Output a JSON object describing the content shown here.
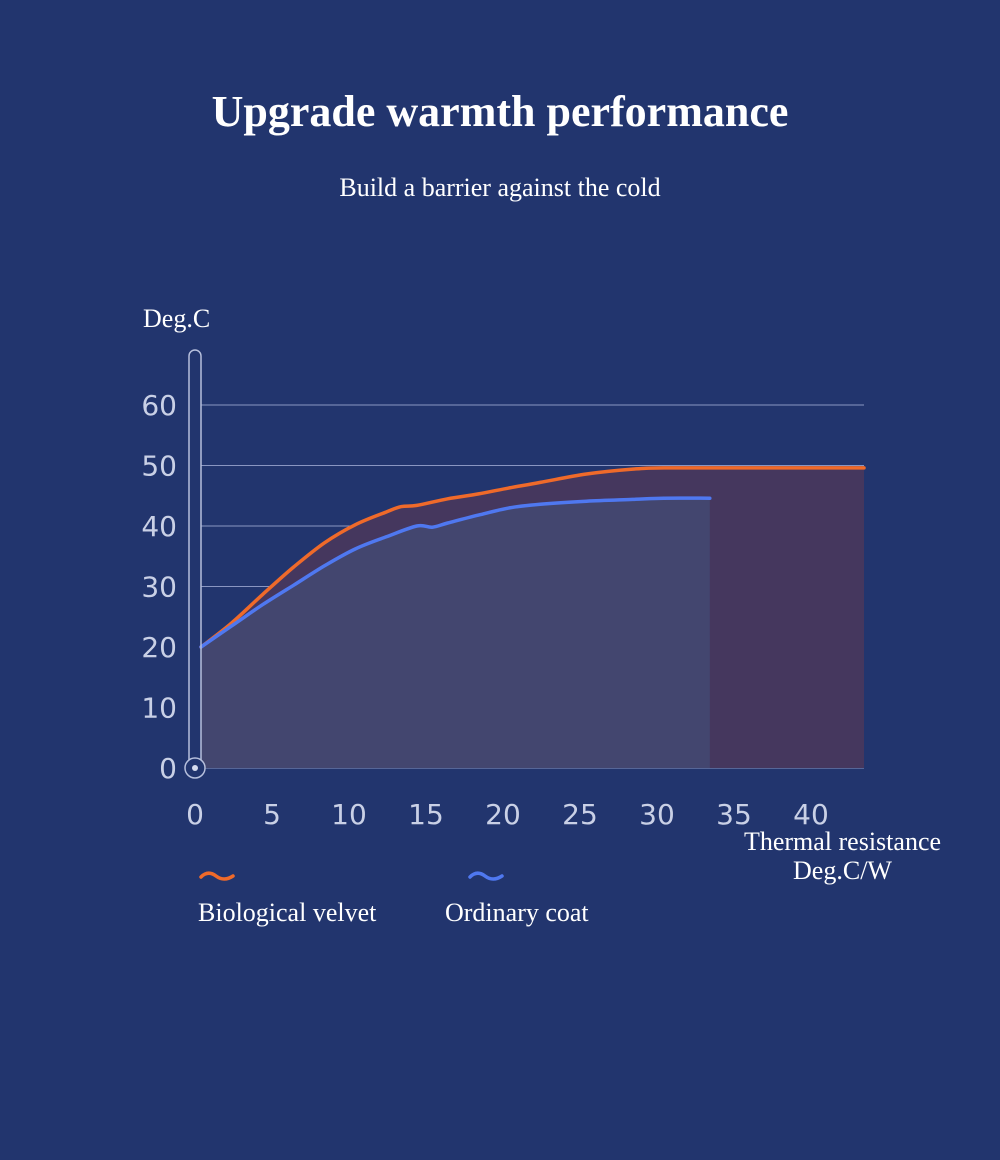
{
  "header": {
    "title": "Upgrade warmth performance",
    "subtitle": "Build a barrier against the cold"
  },
  "chart_data": {
    "type": "area",
    "ylabel": "Deg.C",
    "xlabel_lines": [
      "Thermal resistance",
      "Deg.C/W"
    ],
    "xlim": [
      0,
      43
    ],
    "ylim": [
      0,
      60
    ],
    "x_ticks": [
      0,
      5,
      10,
      15,
      20,
      25,
      30,
      35,
      40
    ],
    "y_ticks": [
      0,
      10,
      20,
      30,
      40,
      50,
      60
    ],
    "grid": true,
    "legend_position": "bottom-left",
    "series": [
      {
        "name": "Biological velvet",
        "color": "#ef6a2a",
        "fill": "#45375e",
        "x": [
          0,
          2,
          4,
          6,
          8,
          10,
          12,
          13,
          14,
          16,
          18,
          20,
          22,
          25,
          28,
          30,
          35,
          40,
          43
        ],
        "y": [
          20,
          24,
          28.7,
          33.2,
          37.2,
          40.2,
          42.3,
          43.2,
          43.4,
          44.5,
          45.3,
          46.3,
          47.2,
          48.6,
          49.4,
          49.6,
          49.6,
          49.6,
          49.6
        ]
      },
      {
        "name": "Ordinary coat",
        "color": "#4f78f0",
        "fill": "#43466f",
        "x": [
          0,
          2,
          4,
          6,
          8,
          10,
          12,
          14,
          15,
          16,
          18,
          20,
          22,
          25,
          28,
          30,
          33
        ],
        "y": [
          20,
          23.5,
          27,
          30.2,
          33.4,
          36.2,
          38.2,
          40,
          39.8,
          40.5,
          41.8,
          43,
          43.6,
          44.1,
          44.4,
          44.6,
          44.6
        ]
      }
    ]
  }
}
